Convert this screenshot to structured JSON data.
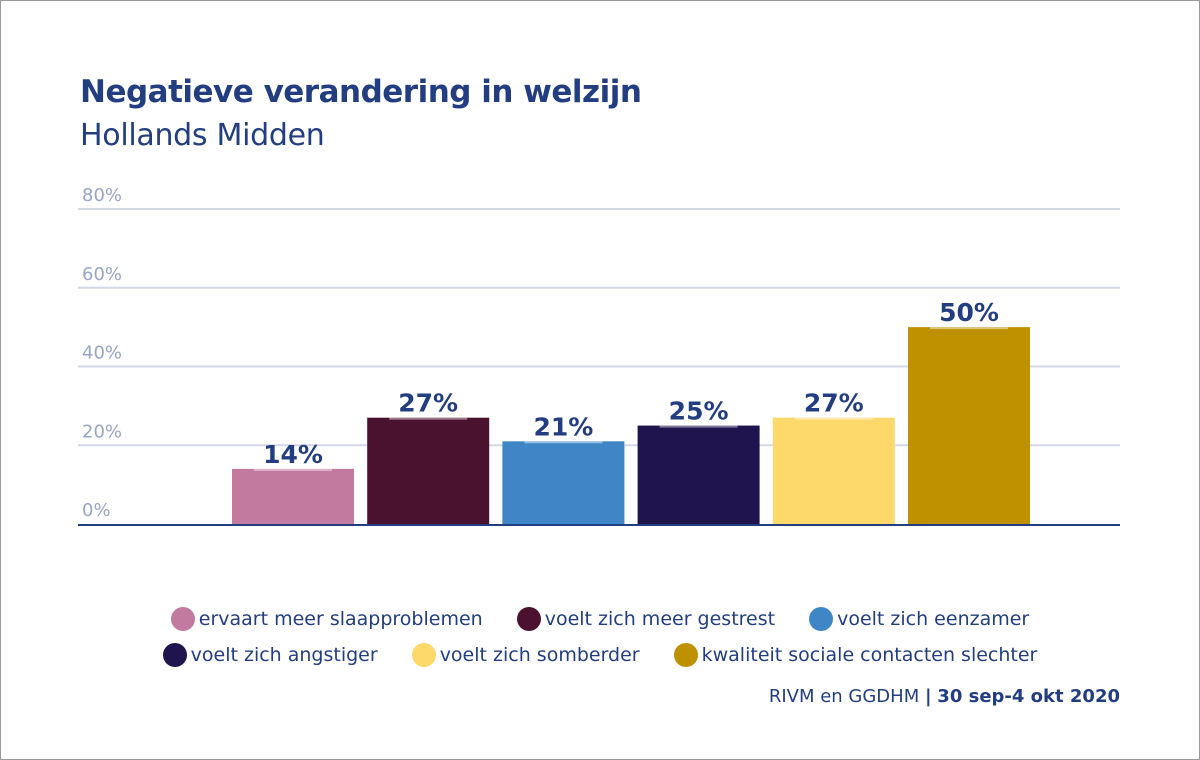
{
  "chart_data": {
    "type": "bar",
    "title": "Negatieve verandering in welzijn",
    "subtitle": "Hollands Midden",
    "xlabel": "",
    "ylabel": "",
    "ylim": [
      0,
      80
    ],
    "yticks": [
      0,
      20,
      40,
      60,
      80
    ],
    "ytick_labels": [
      "0%",
      "20%",
      "40%",
      "60%",
      "80%"
    ],
    "grid": true,
    "legend_position": "bottom",
    "categories": [
      "ervaart meer slaapproblemen",
      "voelt zich meer gestrest",
      "voelt zich eenzamer",
      "voelt zich angstiger",
      "voelt zich somberder",
      "kwaliteit sociale contacten slechter"
    ],
    "values": [
      14,
      27,
      21,
      25,
      27,
      50
    ],
    "data_labels": [
      "14%",
      "27%",
      "21%",
      "25%",
      "27%",
      "50%"
    ],
    "colors": [
      "#c27a9e",
      "#4b1230",
      "#3f86c6",
      "#1f144d",
      "#fdd86a",
      "#bf9000"
    ]
  },
  "legend": {
    "row1": [
      {
        "label": "ervaart meer slaapproblemen",
        "color": "#c27a9e"
      },
      {
        "label": "voelt zich meer gestrest",
        "color": "#4b1230"
      },
      {
        "label": "voelt zich eenzamer",
        "color": "#3f86c6"
      }
    ],
    "row2": [
      {
        "label": "voelt zich angstiger",
        "color": "#1f144d"
      },
      {
        "label": "voelt zich somberder",
        "color": "#fdd86a"
      },
      {
        "label": "kwaliteit sociale contacten slechter",
        "color": "#bf9000"
      }
    ]
  },
  "source": {
    "text": "RIVM en GGDHM",
    "separator": "|",
    "date": "30 sep-4 okt 2020"
  },
  "colors": {
    "text": "#223d80",
    "grid": "#d3d7e6",
    "axis": "#223d80",
    "tick_label": "#9aa4c4"
  }
}
